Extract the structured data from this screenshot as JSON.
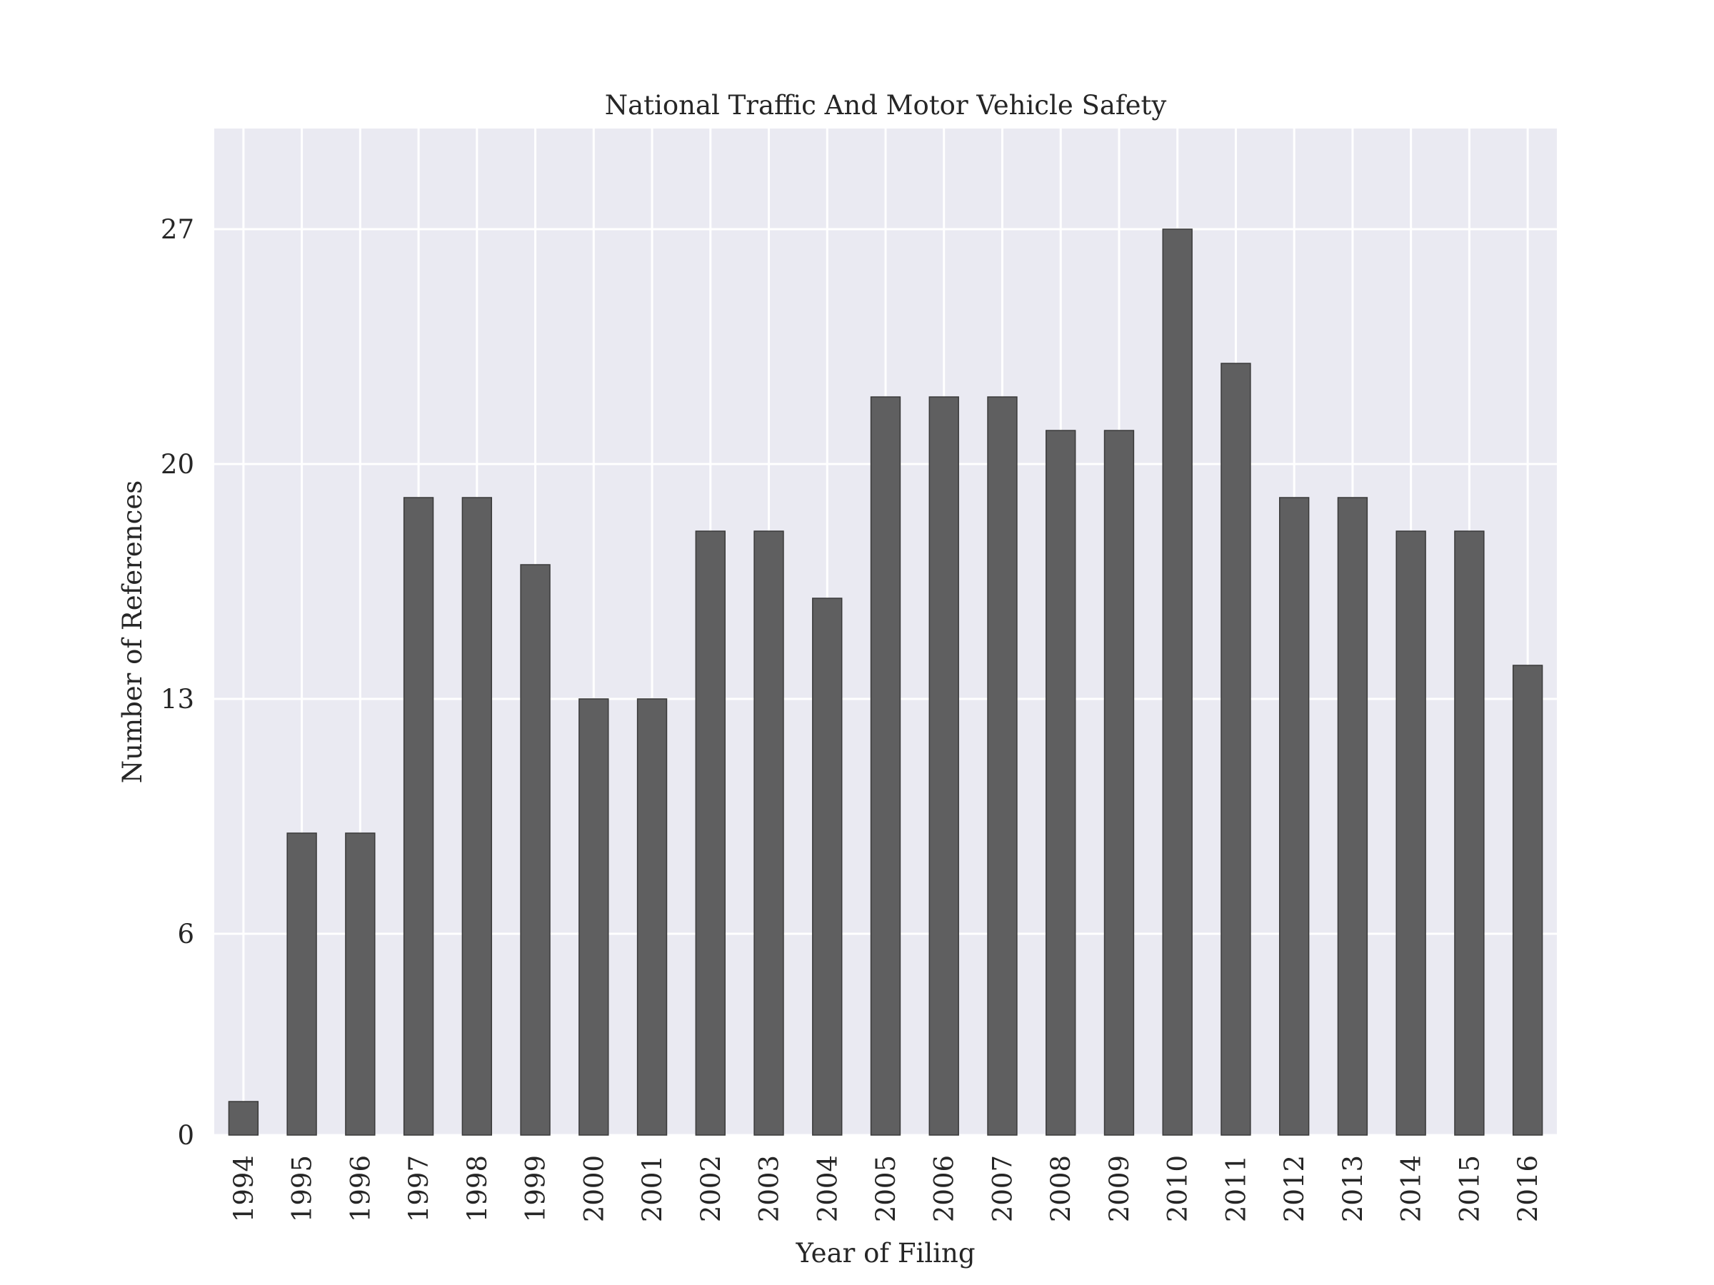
{
  "chart_data": {
    "type": "bar",
    "title": "National Traffic And Motor Vehicle Safety",
    "xlabel": "Year of Filing",
    "ylabel": "Number of References",
    "categories": [
      "1994",
      "1995",
      "1996",
      "1997",
      "1998",
      "1999",
      "2000",
      "2001",
      "2002",
      "2003",
      "2004",
      "2005",
      "2006",
      "2007",
      "2008",
      "2009",
      "2010",
      "2011",
      "2012",
      "2013",
      "2014",
      "2015",
      "2016"
    ],
    "values": [
      1,
      9,
      9,
      19,
      19,
      17,
      13,
      13,
      18,
      18,
      16,
      22,
      22,
      22,
      21,
      21,
      27,
      23,
      19,
      19,
      18,
      18,
      14
    ],
    "yticks": [
      0,
      6,
      13,
      20,
      27
    ],
    "ylim": [
      0,
      30
    ],
    "grid": true,
    "colors": {
      "plot_background": "#EAEAF2",
      "grid": "#FFFFFF",
      "bar_fill": "#5f5f60",
      "bar_edge": "#3a3a3a",
      "text": "#262626"
    }
  }
}
